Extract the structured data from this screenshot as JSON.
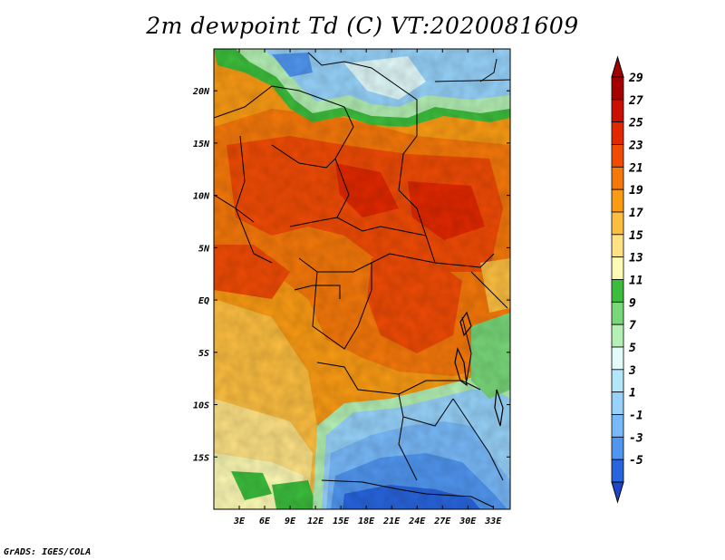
{
  "title": "2m dewpoint Td (C) VT:2020081609",
  "credit": "GrADS: IGES/COLA",
  "map": {
    "lat_range": [
      -20,
      24
    ],
    "lon_range": [
      0,
      35
    ],
    "lat_ticks": [
      {
        "value": 20,
        "label": "20N"
      },
      {
        "value": 15,
        "label": "15N"
      },
      {
        "value": 10,
        "label": "10N"
      },
      {
        "value": 5,
        "label": "5N"
      },
      {
        "value": 0,
        "label": "EQ"
      },
      {
        "value": -5,
        "label": "5S"
      },
      {
        "value": -10,
        "label": "10S"
      },
      {
        "value": -15,
        "label": "15S"
      }
    ],
    "lon_ticks": [
      {
        "value": 3,
        "label": "3E"
      },
      {
        "value": 6,
        "label": "6E"
      },
      {
        "value": 9,
        "label": "9E"
      },
      {
        "value": 12,
        "label": "12E"
      },
      {
        "value": 15,
        "label": "15E"
      },
      {
        "value": 18,
        "label": "18E"
      },
      {
        "value": 21,
        "label": "21E"
      },
      {
        "value": 24,
        "label": "24E"
      },
      {
        "value": 27,
        "label": "27E"
      },
      {
        "value": 30,
        "label": "30E"
      },
      {
        "value": 33,
        "label": "33E"
      }
    ]
  },
  "colorbar": {
    "unit": "C",
    "levels": [
      {
        "label": "29",
        "color": "#a50000"
      },
      {
        "label": "27",
        "color": "#c80f00"
      },
      {
        "label": "25",
        "color": "#e12800"
      },
      {
        "label": "23",
        "color": "#f04b05"
      },
      {
        "label": "21",
        "color": "#f5780a"
      },
      {
        "label": "19",
        "color": "#fa9b14"
      },
      {
        "label": "17",
        "color": "#fcbe40"
      },
      {
        "label": "15",
        "color": "#fde184"
      },
      {
        "label": "13",
        "color": "#fdfab4"
      },
      {
        "label": "11",
        "color": "#3cbe3c"
      },
      {
        "label": "9",
        "color": "#78d778"
      },
      {
        "label": "7",
        "color": "#b4f0b4"
      },
      {
        "label": "5",
        "color": "#e1fafa"
      },
      {
        "label": "3",
        "color": "#b4e6fa"
      },
      {
        "label": "1",
        "color": "#96d2fa"
      },
      {
        "label": "-1",
        "color": "#78b9fa"
      },
      {
        "label": "-3",
        "color": "#5096f0"
      },
      {
        "label": "-5",
        "color": "#2864dc"
      }
    ],
    "top_color": "#a50000",
    "bottom_color": "#1e46c8"
  }
}
